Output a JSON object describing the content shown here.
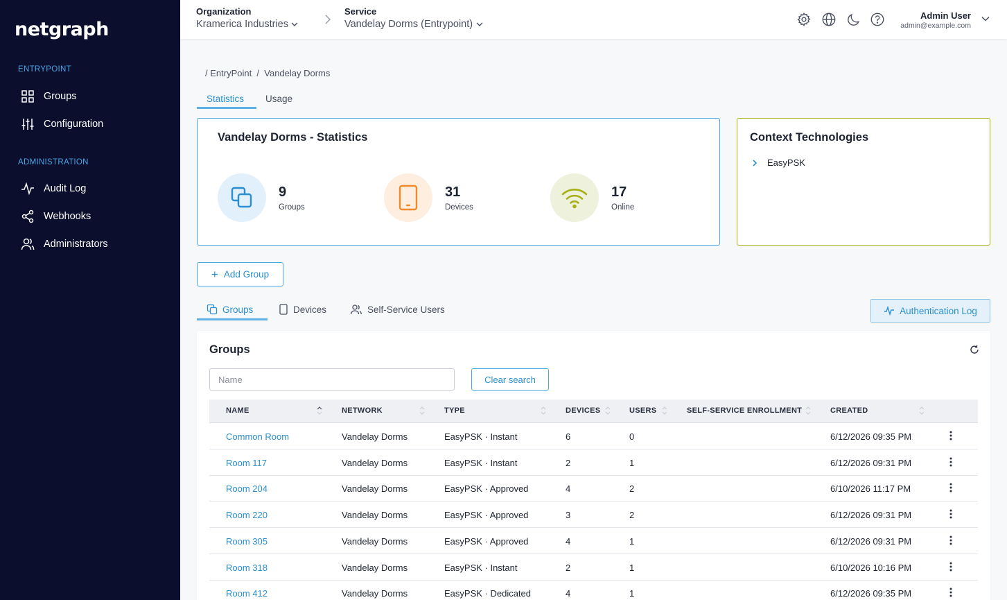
{
  "brand": {
    "name": "netgraph"
  },
  "sidebar": {
    "sections": [
      {
        "label": "ENTRYPOINT",
        "items": [
          {
            "label": "Groups",
            "icon": "grid-icon"
          },
          {
            "label": "Configuration",
            "icon": "sliders-icon"
          }
        ]
      },
      {
        "label": "ADMINISTRATION",
        "items": [
          {
            "label": "Audit Log",
            "icon": "activity-icon"
          },
          {
            "label": "Webhooks",
            "icon": "share-icon"
          },
          {
            "label": "Administrators",
            "icon": "users-icon"
          }
        ]
      }
    ]
  },
  "topbar": {
    "org_label": "Organization",
    "org_value": "Kramerica Industries",
    "service_label": "Service",
    "service_value": "Vandelay Dorms (Entrypoint)",
    "icons": [
      "settings-icon",
      "globe-icon",
      "moon-icon",
      "help-icon"
    ],
    "user_name": "Admin User",
    "user_email": "admin@example.com"
  },
  "breadcrumb": "/ EntryPoint  /  Vandelay Dorms",
  "tabs": {
    "statistics": "Statistics",
    "usage": "Usage"
  },
  "stats_card": {
    "title": "Vandelay Dorms - Statistics",
    "stats": [
      {
        "value": "9",
        "label": "Groups",
        "icon": "copy-icon"
      },
      {
        "value": "31",
        "label": "Devices",
        "icon": "tablet-icon"
      },
      {
        "value": "17",
        "label": "Online",
        "icon": "wifi-icon"
      }
    ]
  },
  "context_card": {
    "title": "Context Technologies",
    "items": [
      "EasyPSK"
    ]
  },
  "add_group_label": "Add Group",
  "sub_tabs": {
    "groups": "Groups",
    "devices": "Devices",
    "self_service": "Self-Service Users"
  },
  "auth_log_label": "Authentication Log",
  "groups_table": {
    "title": "Groups",
    "search_placeholder": "Name",
    "clear_label": "Clear search",
    "columns": [
      "NAME",
      "NETWORK",
      "TYPE",
      "DEVICES",
      "USERS",
      "SELF-SERVICE ENROLLMENT",
      "CREATED"
    ],
    "rows": [
      {
        "name": "Common Room",
        "network": "Vandelay Dorms",
        "type": "EasyPSK · Instant",
        "devices": "6",
        "users": "0",
        "enrollment": "",
        "created": "6/12/2026 09:35 PM"
      },
      {
        "name": "Room 117",
        "network": "Vandelay Dorms",
        "type": "EasyPSK · Instant",
        "devices": "2",
        "users": "1",
        "enrollment": "",
        "created": "6/12/2026 09:31 PM"
      },
      {
        "name": "Room 204",
        "network": "Vandelay Dorms",
        "type": "EasyPSK · Approved",
        "devices": "4",
        "users": "2",
        "enrollment": "",
        "created": "6/10/2026 11:17 PM"
      },
      {
        "name": "Room 220",
        "network": "Vandelay Dorms",
        "type": "EasyPSK · Approved",
        "devices": "3",
        "users": "2",
        "enrollment": "",
        "created": "6/12/2026 09:31 PM"
      },
      {
        "name": "Room 305",
        "network": "Vandelay Dorms",
        "type": "EasyPSK · Approved",
        "devices": "4",
        "users": "1",
        "enrollment": "",
        "created": "6/12/2026 09:31 PM"
      },
      {
        "name": "Room 318",
        "network": "Vandelay Dorms",
        "type": "EasyPSK · Instant",
        "devices": "2",
        "users": "1",
        "enrollment": "",
        "created": "6/10/2026 10:16 PM"
      },
      {
        "name": "Room 412",
        "network": "Vandelay Dorms",
        "type": "EasyPSK · Dedicated",
        "devices": "4",
        "users": "1",
        "enrollment": "",
        "created": "6/12/2026 09:35 PM"
      }
    ]
  },
  "colors": {
    "sidebar_bg": "#0b0e2c",
    "accent": "#2a8fd0",
    "context_border": "#a8b018"
  }
}
